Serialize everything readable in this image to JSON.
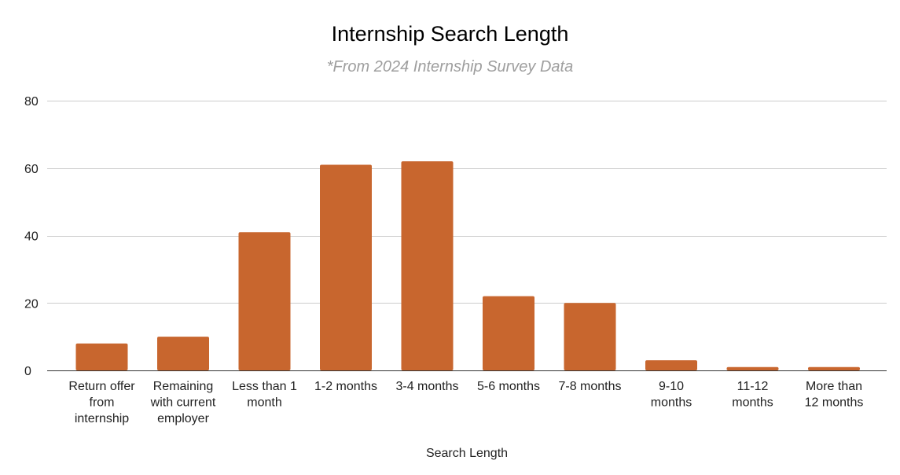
{
  "chart_data": {
    "type": "bar",
    "title": "Internship Search Length",
    "subtitle": "*From 2024 Internship Survey Data",
    "xlabel": "Search Length",
    "ylabel": "",
    "categories": [
      "Return offer from internship",
      "Remaining with current employer",
      "Less than 1 month",
      "1-2 months",
      "3-4 months",
      "5-6 months",
      "7-8 months",
      "9-10 months",
      "11-12 months",
      "More than 12 months"
    ],
    "category_lines": [
      [
        "Return offer",
        "from",
        "internship"
      ],
      [
        "Remaining",
        "with current",
        "employer"
      ],
      [
        "Less than 1",
        "month"
      ],
      [
        "1-2 months"
      ],
      [
        "3-4 months"
      ],
      [
        "5-6 months"
      ],
      [
        "7-8 months"
      ],
      [
        "9-10",
        "months"
      ],
      [
        "11-12",
        "months"
      ],
      [
        "More than",
        "12 months"
      ]
    ],
    "values": [
      8,
      10,
      41,
      61,
      62,
      22,
      20,
      3,
      1,
      1
    ],
    "ylim": [
      0,
      80
    ],
    "yticks": [
      0,
      20,
      40,
      60,
      80
    ],
    "grid": true,
    "bar_color": "#c8662e",
    "legend": "none"
  }
}
